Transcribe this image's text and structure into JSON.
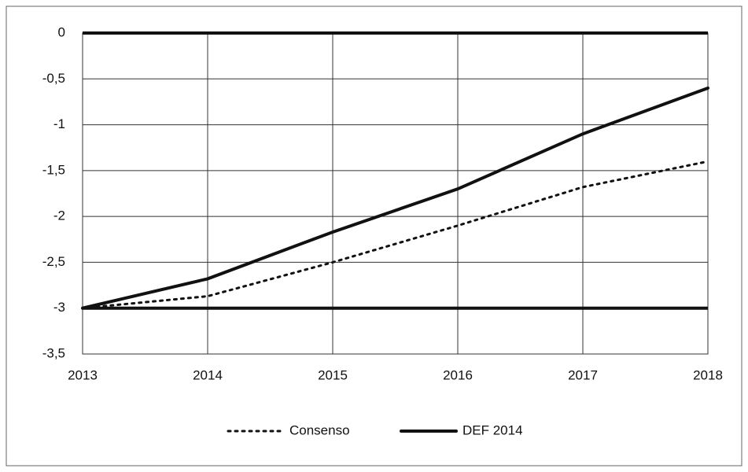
{
  "chart_data": {
    "type": "line",
    "x": [
      2013,
      2014,
      2015,
      2016,
      2017,
      2018
    ],
    "xlim": [
      2013,
      2018
    ],
    "xticks": [
      2013,
      2014,
      2015,
      2016,
      2017,
      2018
    ],
    "ylim": [
      -3.5,
      0
    ],
    "yticks": [
      0,
      {
        "value": -0.5,
        "label": "-0,5"
      },
      -1,
      {
        "value": -1.5,
        "label": "-1,5"
      },
      -2,
      {
        "value": -2.5,
        "label": "-2,5"
      },
      -3,
      {
        "value": -3.5,
        "label": "-3,5"
      }
    ],
    "grid": true,
    "hlines": [
      0,
      -3
    ],
    "legend": "bottom",
    "series": [
      {
        "name": "Consenso",
        "color": "#111111",
        "style": "dotted",
        "values": [
          -3,
          -2.87,
          -2.5,
          -2.1,
          -1.68,
          -1.4
        ]
      },
      {
        "name": "DEF 2014",
        "color": "#111111",
        "style": "solid",
        "values": [
          -3,
          -2.68,
          -2.17,
          -1.7,
          -1.1,
          -0.6
        ]
      }
    ]
  }
}
